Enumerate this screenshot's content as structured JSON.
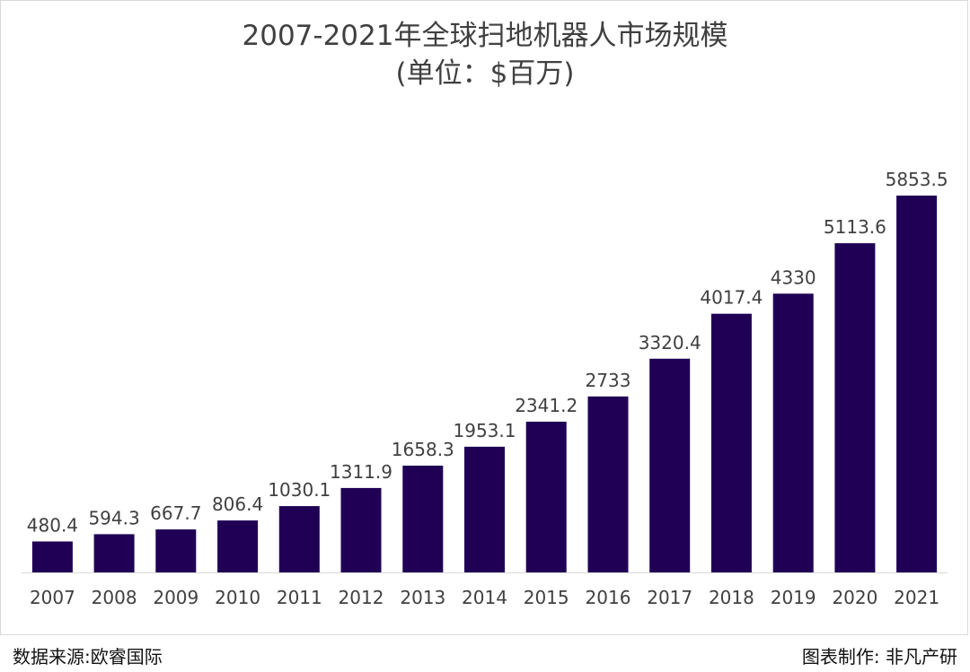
{
  "chart_data": {
    "type": "bar",
    "title": "2007-2021年全球扫地机器人市场规模",
    "subtitle": "(单位：$百万)",
    "categories": [
      "2007",
      "2008",
      "2009",
      "2010",
      "2011",
      "2012",
      "2013",
      "2014",
      "2015",
      "2016",
      "2017",
      "2018",
      "2019",
      "2020",
      "2021"
    ],
    "values": [
      480.4,
      594.3,
      667.7,
      806.4,
      1030.1,
      1311.9,
      1658.3,
      1953.1,
      2341.2,
      2733,
      3320.4,
      4017.4,
      4330,
      5113.6,
      5853.5
    ],
    "value_labels": [
      "480.4",
      "594.3",
      "667.7",
      "806.4",
      "1030.1",
      "1311.9",
      "1658.3",
      "1953.1",
      "2341.2",
      "2733",
      "3320.4",
      "4017.4",
      "4330",
      "5113.6",
      "5853.5"
    ],
    "xlabel": "",
    "ylabel": "",
    "ylim": [
      0,
      5853.5
    ],
    "grid": false,
    "bar_color": "#1f0055"
  },
  "footer": {
    "source": "数据来源:欧睿国际",
    "credit": "图表制作: 非凡产研"
  }
}
